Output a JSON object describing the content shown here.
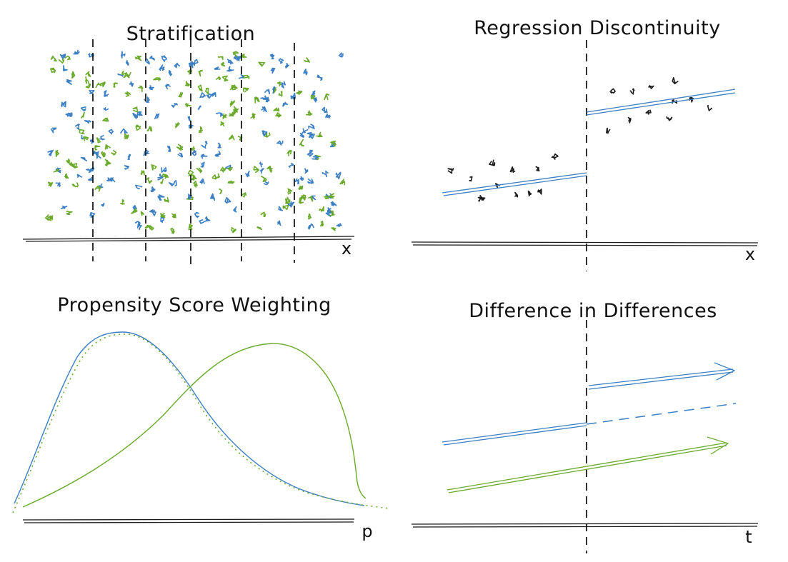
{
  "colors": {
    "treated": "#3b7fc4",
    "control": "#6aaa2a",
    "ink": "#1a1a1a"
  },
  "panels": {
    "stratification": {
      "title": "Stratification",
      "axis_label": "x",
      "strata_boundaries": 5,
      "dot_colors": [
        "treated",
        "control"
      ]
    },
    "regression_discontinuity": {
      "title": "Regression Discontinuity",
      "axis_label": "x",
      "groups": [
        "below-cutoff",
        "above-cutoff"
      ]
    },
    "propensity_score_weighting": {
      "title": "Propensity Score Weighting",
      "axis_label": "p",
      "curves": [
        {
          "style": "solid",
          "color": "treated"
        },
        {
          "style": "dotted",
          "color": "control"
        },
        {
          "style": "solid",
          "color": "control"
        }
      ]
    },
    "difference_in_differences": {
      "title": "Difference in Differences",
      "axis_label": "t",
      "lines": [
        {
          "style": "solid",
          "color": "treated",
          "segment": "pre"
        },
        {
          "style": "dashed",
          "color": "treated",
          "segment": "counterfactual"
        },
        {
          "style": "solid-arrow",
          "color": "treated",
          "segment": "post"
        },
        {
          "style": "solid-arrow",
          "color": "control",
          "segment": "full"
        }
      ]
    }
  }
}
